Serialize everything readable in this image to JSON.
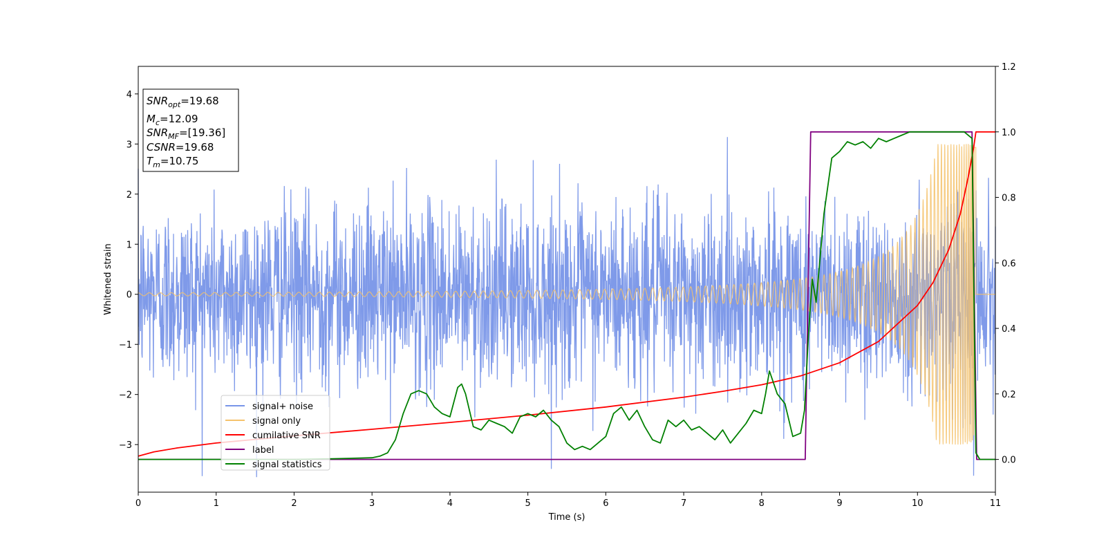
{
  "chart_data": {
    "type": "line",
    "xlabel": "Time (s)",
    "ylabel": "Whitened strain",
    "xlim": [
      0,
      11
    ],
    "ylim": [
      -3.95,
      4.55
    ],
    "y2lim": [
      -0.1,
      1.2
    ],
    "grid": false,
    "legend_position": "lower-left",
    "x_ticks": [
      "0",
      "1",
      "2",
      "3",
      "4",
      "5",
      "6",
      "7",
      "8",
      "9",
      "10",
      "11"
    ],
    "y_ticks": [
      "−3",
      "−2",
      "−1",
      "0",
      "1",
      "2",
      "3",
      "4"
    ],
    "y2_ticks": [
      "0.0",
      "0.2",
      "0.4",
      "0.6",
      "0.8",
      "1.0",
      "1.2"
    ],
    "x_tick_values": [
      0,
      1,
      2,
      3,
      4,
      5,
      6,
      7,
      8,
      9,
      10,
      11
    ],
    "y_tick_values": [
      -3,
      -2,
      -1,
      0,
      1,
      2,
      3,
      4
    ],
    "y2_tick_values": [
      0,
      0.2,
      0.4,
      0.6,
      0.8,
      1.0,
      1.2
    ],
    "annotation": {
      "snr_opt": {
        "base": "SNR",
        "sub": "opt",
        "value": "=19.68"
      },
      "mc": {
        "base": "M",
        "sub": "c",
        "value": "=12.09"
      },
      "snr_mf": {
        "base": "SNR",
        "sub": "MF",
        "value": "=[19.36]"
      },
      "csnr": {
        "base": "CSNR",
        "value": "=19.68"
      },
      "tm": {
        "base": "T",
        "sub": "m",
        "value": "=10.75"
      }
    },
    "series": [
      {
        "name": "signal+ noise",
        "axis": "left",
        "color": "#7895e8",
        "description_stats": {
          "std": 0.9,
          "x_range": [
            0,
            11
          ]
        }
      },
      {
        "name": "signal only",
        "axis": "left",
        "color": "#f5c26b",
        "chirp": {
          "t_start": 0,
          "t_merge": 10.75,
          "amp_start": 0.03,
          "amp_peak": 3.0,
          "freq_start": 7
        }
      },
      {
        "name": "cumilative SNR",
        "axis": "right",
        "color": "#ff0000",
        "x": [
          0,
          0.2,
          0.5,
          1,
          2,
          3,
          4,
          5,
          6,
          7,
          7.5,
          8,
          8.5,
          9,
          9.5,
          10,
          10.2,
          10.4,
          10.55,
          10.65,
          10.72,
          10.75,
          11
        ],
        "values": [
          0.01,
          0.023,
          0.035,
          0.05,
          0.072,
          0.092,
          0.113,
          0.135,
          0.16,
          0.19,
          0.208,
          0.228,
          0.255,
          0.295,
          0.36,
          0.47,
          0.54,
          0.64,
          0.75,
          0.86,
          0.95,
          1.0,
          1.0
        ]
      },
      {
        "name": "label",
        "axis": "right",
        "color": "#800080",
        "x": [
          0,
          8.56,
          8.63,
          10.7,
          10.76,
          11
        ],
        "values": [
          0,
          0,
          1,
          1,
          0,
          0
        ]
      },
      {
        "name": "signal statistics",
        "axis": "right",
        "color": "#008000",
        "x": [
          0,
          1,
          2,
          2.5,
          3.0,
          3.1,
          3.2,
          3.3,
          3.4,
          3.5,
          3.6,
          3.7,
          3.8,
          3.9,
          4.0,
          4.1,
          4.15,
          4.2,
          4.3,
          4.4,
          4.5,
          4.6,
          4.7,
          4.8,
          4.9,
          5.0,
          5.1,
          5.2,
          5.3,
          5.4,
          5.5,
          5.6,
          5.7,
          5.8,
          5.9,
          6.0,
          6.1,
          6.2,
          6.3,
          6.4,
          6.5,
          6.6,
          6.7,
          6.8,
          6.9,
          7.0,
          7.1,
          7.2,
          7.3,
          7.4,
          7.5,
          7.6,
          7.7,
          7.8,
          7.9,
          8.0,
          8.05,
          8.1,
          8.2,
          8.3,
          8.4,
          8.5,
          8.55,
          8.6,
          8.65,
          8.7,
          8.8,
          8.9,
          9.0,
          9.1,
          9.2,
          9.3,
          9.4,
          9.5,
          9.6,
          9.7,
          9.8,
          9.9,
          10.0,
          10.2,
          10.4,
          10.6,
          10.7,
          10.75,
          10.8,
          11
        ],
        "values": [
          0.0,
          0.0,
          0.0,
          0.002,
          0.005,
          0.01,
          0.02,
          0.06,
          0.14,
          0.2,
          0.21,
          0.2,
          0.16,
          0.14,
          0.13,
          0.22,
          0.23,
          0.2,
          0.1,
          0.09,
          0.12,
          0.11,
          0.1,
          0.08,
          0.13,
          0.14,
          0.13,
          0.15,
          0.12,
          0.1,
          0.05,
          0.03,
          0.04,
          0.03,
          0.05,
          0.07,
          0.14,
          0.16,
          0.12,
          0.15,
          0.1,
          0.06,
          0.05,
          0.12,
          0.1,
          0.12,
          0.09,
          0.1,
          0.08,
          0.06,
          0.09,
          0.05,
          0.08,
          0.11,
          0.15,
          0.14,
          0.2,
          0.27,
          0.2,
          0.17,
          0.07,
          0.08,
          0.15,
          0.38,
          0.55,
          0.48,
          0.75,
          0.92,
          0.94,
          0.97,
          0.96,
          0.97,
          0.95,
          0.98,
          0.97,
          0.98,
          0.99,
          1.0,
          1.0,
          1.0,
          1.0,
          1.0,
          0.98,
          0.02,
          0.0,
          0.0
        ]
      }
    ]
  }
}
